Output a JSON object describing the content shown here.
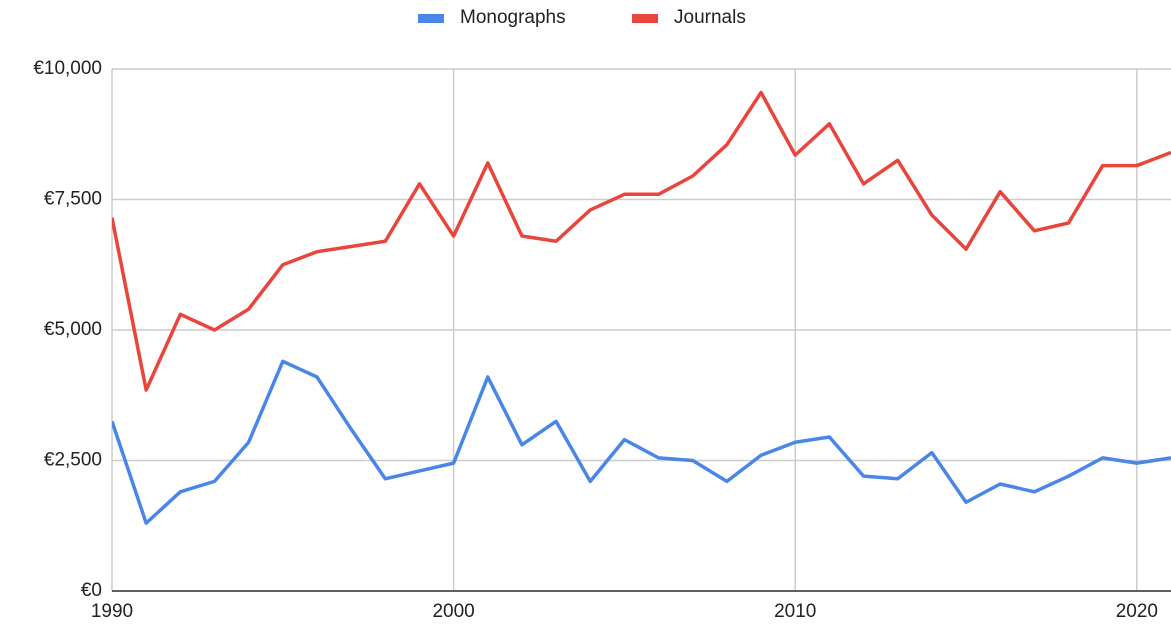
{
  "chart_data": {
    "type": "line",
    "x": [
      1990,
      1991,
      1992,
      1993,
      1994,
      1995,
      1996,
      1997,
      1998,
      1999,
      2000,
      2001,
      2002,
      2003,
      2004,
      2005,
      2006,
      2007,
      2008,
      2009,
      2010,
      2011,
      2012,
      2013,
      2014,
      2015,
      2016,
      2017,
      2018,
      2019,
      2020,
      2021
    ],
    "series": [
      {
        "name": "Monographs",
        "color": "#4a86e8",
        "values": [
          3250,
          1300,
          1900,
          2100,
          2850,
          4400,
          4100,
          3100,
          2150,
          2300,
          2450,
          4100,
          2800,
          3250,
          2100,
          2900,
          2550,
          2500,
          2100,
          2600,
          2850,
          2950,
          2200,
          2150,
          2650,
          1700,
          2050,
          1900,
          2200,
          2550,
          2450,
          2550
        ]
      },
      {
        "name": "Journals",
        "color": "#e8453c",
        "values": [
          7150,
          3850,
          5300,
          5000,
          5400,
          6250,
          6500,
          6600,
          6700,
          7800,
          6800,
          8200,
          6800,
          6700,
          7300,
          7600,
          7600,
          7950,
          8550,
          9550,
          8350,
          8950,
          7800,
          8250,
          7200,
          6550,
          7650,
          6900,
          7050,
          8150,
          8150,
          8400
        ]
      }
    ],
    "xlim": [
      1990,
      2021
    ],
    "xticks": [
      1990,
      2000,
      2010,
      2020
    ],
    "ylim": [
      0,
      10000
    ],
    "yticks": [
      {
        "value": 0,
        "label": "€0"
      },
      {
        "value": 2500,
        "label": "€2,500"
      },
      {
        "value": 5000,
        "label": "€5,000"
      },
      {
        "value": 7500,
        "label": "€7,500"
      },
      {
        "value": 10000,
        "label": "€10,000"
      }
    ],
    "grid": true,
    "legend": "top"
  }
}
